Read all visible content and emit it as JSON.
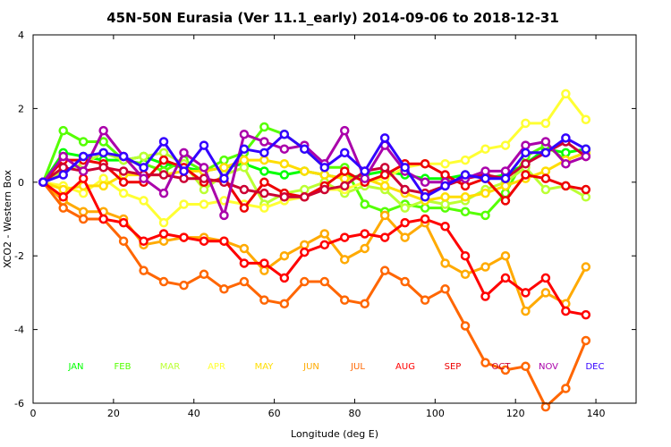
{
  "chart_data": {
    "type": "line",
    "title": "45N-50N Eurasia (Ver 11.1_early)   2014-09-06 to 2018-12-31",
    "xlabel": "Longitude (deg E)",
    "ylabel": "XCO2 - Western Box",
    "xlim": [
      0,
      150
    ],
    "ylim": [
      -6,
      4
    ],
    "xticks": [
      "0",
      "20",
      "40",
      "60",
      "80",
      "100",
      "120",
      "140"
    ],
    "xtick_values": [
      0,
      20,
      40,
      60,
      80,
      100,
      120,
      140
    ],
    "yticks": [
      "-6",
      "-4",
      "-2",
      "0",
      "2",
      "4"
    ],
    "ytick_values": [
      -6,
      -4,
      -2,
      0,
      2,
      4
    ],
    "x": [
      2.5,
      7.5,
      12.5,
      17.5,
      22.5,
      27.5,
      32.5,
      37.5,
      42.5,
      47.5,
      52.5,
      57.5,
      62.5,
      67.5,
      72.5,
      77.5,
      82.5,
      87.5,
      92.5,
      97.5,
      102.5,
      107.5,
      112.5,
      117.5,
      122.5,
      127.5,
      132.5,
      137.5
    ],
    "series": [
      {
        "name": "JAN",
        "color": "#00ff00",
        "values": [
          0,
          0.8,
          0.7,
          0.6,
          0.6,
          0.7,
          0.5,
          0.4,
          0.3,
          0.4,
          0.5,
          0.3,
          0.2,
          0.3,
          0.2,
          0.1,
          0.2,
          0.3,
          0.2,
          0.1,
          0.1,
          0.2,
          0.1,
          0.2,
          0.5,
          0.9,
          0.8,
          0.9
        ]
      },
      {
        "name": "FEB",
        "color": "#55ff00",
        "values": [
          0,
          1.4,
          1.1,
          1.1,
          0.6,
          0.5,
          0.3,
          0.6,
          0.3,
          0.6,
          0.8,
          1.5,
          1.3,
          0.9,
          0.4,
          0.4,
          -0.6,
          -0.8,
          -0.6,
          -0.7,
          -0.7,
          -0.8,
          -0.9,
          -0.3,
          0.7,
          1.0,
          0.6,
          0.8
        ]
      },
      {
        "name": "MAR",
        "color": "#bbff33",
        "values": [
          0,
          0.3,
          0.5,
          0.8,
          0.6,
          0.7,
          0.8,
          0.5,
          -0.2,
          0.2,
          0.4,
          -0.6,
          -0.3,
          -0.2,
          0.0,
          -0.3,
          -0.1,
          -0.2,
          -0.7,
          -0.5,
          -0.6,
          -0.5,
          -0.2,
          0.0,
          0.4,
          -0.2,
          -0.1,
          -0.4
        ]
      },
      {
        "name": "APR",
        "color": "#ffff33",
        "values": [
          0,
          -0.1,
          -0.3,
          0.1,
          -0.3,
          -0.5,
          -1.1,
          -0.6,
          -0.6,
          -0.5,
          -0.6,
          -0.7,
          -0.5,
          -0.4,
          -0.2,
          -0.2,
          0.0,
          0.1,
          0.4,
          0.5,
          0.5,
          0.6,
          0.9,
          1.0,
          1.6,
          1.6,
          2.4,
          1.7
        ]
      },
      {
        "name": "MAY",
        "color": "#ffdd00",
        "values": [
          0,
          -0.2,
          -0.1,
          -0.1,
          0.2,
          0.2,
          0.2,
          0.3,
          0.3,
          0.4,
          0.6,
          0.6,
          0.5,
          0.3,
          0.2,
          0.1,
          0.1,
          -0.1,
          -0.3,
          -0.5,
          -0.4,
          -0.4,
          -0.3,
          -0.1,
          0.1,
          0.3,
          0.6,
          0.8
        ]
      },
      {
        "name": "JUN",
        "color": "#ffaa00",
        "values": [
          0,
          -0.5,
          -0.8,
          -0.8,
          -1.0,
          -1.7,
          -1.6,
          -1.5,
          -1.5,
          -1.6,
          -1.8,
          -2.4,
          -2.0,
          -1.7,
          -1.4,
          -2.1,
          -1.8,
          -0.9,
          -1.5,
          -1.1,
          -2.2,
          -2.5,
          -2.3,
          -2.0,
          -3.5,
          -3.0,
          -3.3,
          -2.3
        ]
      },
      {
        "name": "JUL",
        "color": "#ff6600",
        "values": [
          0,
          -0.7,
          -1.0,
          -1.0,
          -1.6,
          -2.4,
          -2.7,
          -2.8,
          -2.5,
          -2.9,
          -2.7,
          -3.2,
          -3.3,
          -2.7,
          -2.7,
          -3.2,
          -3.3,
          -2.4,
          -2.7,
          -3.2,
          -2.9,
          -3.9,
          -4.9,
          -5.1,
          -5.0,
          -6.1,
          -5.6,
          -4.3
        ]
      },
      {
        "name": "AUG",
        "color": "#ff0000",
        "values": [
          0,
          -0.4,
          0.1,
          -1.0,
          -1.1,
          -1.6,
          -1.4,
          -1.5,
          -1.6,
          -1.6,
          -2.2,
          -2.2,
          -2.6,
          -1.9,
          -1.7,
          -1.5,
          -1.4,
          -1.5,
          -1.1,
          -1.0,
          -1.2,
          -2.0,
          -3.1,
          -2.6,
          -3.0,
          -2.6,
          -3.5,
          -3.6
        ]
      },
      {
        "name": "SEP",
        "color": "#ee0000",
        "values": [
          0,
          0.6,
          0.6,
          0.5,
          0.0,
          0.0,
          0.6,
          0.4,
          0.0,
          0.1,
          -0.7,
          0.0,
          -0.3,
          -0.4,
          -0.1,
          0.3,
          0.0,
          0.2,
          0.5,
          0.5,
          0.2,
          -0.1,
          0.1,
          -0.5,
          0.2,
          0.1,
          -0.1,
          -0.2
        ]
      },
      {
        "name": "OCT",
        "color": "#cc0033",
        "values": [
          0,
          0.4,
          0.3,
          0.4,
          0.3,
          0.2,
          0.2,
          0.1,
          0.1,
          0.0,
          -0.2,
          -0.3,
          -0.4,
          -0.4,
          -0.2,
          -0.1,
          0.3,
          0.4,
          -0.2,
          -0.3,
          -0.1,
          0.1,
          0.2,
          0.1,
          0.5,
          0.8,
          1.1,
          0.7
        ]
      },
      {
        "name": "NOV",
        "color": "#aa00aa",
        "values": [
          0,
          0.7,
          0.3,
          1.4,
          0.7,
          0.1,
          -0.3,
          0.8,
          0.4,
          -0.9,
          1.3,
          1.1,
          0.9,
          1.0,
          0.5,
          1.4,
          0.1,
          1.0,
          0.3,
          0.0,
          0.0,
          0.1,
          0.3,
          0.3,
          1.0,
          1.1,
          0.5,
          0.7
        ]
      },
      {
        "name": "DEC",
        "color": "#3300ff",
        "values": [
          0,
          0.2,
          0.7,
          0.8,
          0.7,
          0.4,
          1.1,
          0.3,
          1.0,
          0.1,
          0.9,
          0.8,
          1.3,
          0.9,
          0.4,
          0.8,
          0.3,
          1.2,
          0.4,
          -0.4,
          -0.1,
          0.2,
          0.1,
          0.1,
          0.8,
          0.8,
          1.2,
          0.9
        ]
      }
    ]
  }
}
